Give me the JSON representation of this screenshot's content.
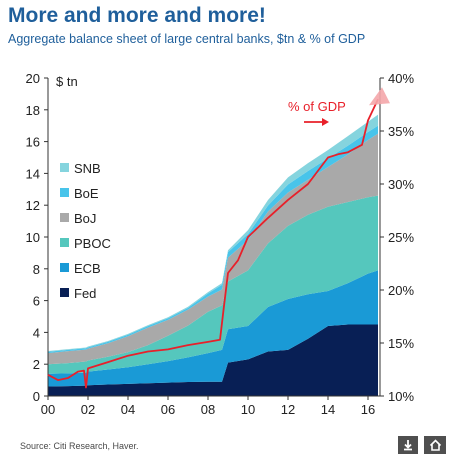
{
  "title": "More and more and more!",
  "subtitle": "Aggregate balance sheet of large central banks, $tn & % of GDP",
  "source": "Source: Citi Research, Haver.",
  "controls": {
    "download_icon": "download-icon",
    "share_icon": "home-icon"
  },
  "chart_data": {
    "type": "area",
    "stacked": true,
    "left_axis_unit": "$ tn",
    "ylim": [
      0,
      20
    ],
    "yticks": [
      0,
      2,
      4,
      6,
      8,
      10,
      12,
      14,
      16,
      18,
      20
    ],
    "y2lim": [
      10,
      40
    ],
    "y2ticks": [
      "10%",
      "15%",
      "20%",
      "25%",
      "30%",
      "35%",
      "40%"
    ],
    "xlim": [
      2000,
      2016.6
    ],
    "xticks": [
      2000,
      2002,
      2004,
      2006,
      2008,
      2010,
      2012,
      2014,
      2016
    ],
    "xtick_labels": [
      "00",
      "02",
      "04",
      "06",
      "08",
      "10",
      "12",
      "14",
      "16"
    ],
    "legend": {
      "placement": "left",
      "entries": [
        {
          "name": "SNB",
          "color": "#85d4de"
        },
        {
          "name": "BoE",
          "color": "#48c4ea"
        },
        {
          "name": "BoJ",
          "color": "#a9a9a9"
        },
        {
          "name": "PBOC",
          "color": "#55c7bd"
        },
        {
          "name": "ECB",
          "color": "#1a9ad6"
        },
        {
          "name": "Fed",
          "color": "#081f55"
        }
      ]
    },
    "x": [
      2000,
      2001,
      2001.9,
      2002,
      2003,
      2004,
      2005,
      2006,
      2007,
      2008,
      2008.7,
      2009,
      2010,
      2011,
      2012,
      2013,
      2014,
      2015,
      2016,
      2016.5
    ],
    "series": [
      {
        "name": "Fed",
        "values": [
          0.6,
          0.62,
          0.65,
          0.68,
          0.72,
          0.76,
          0.8,
          0.84,
          0.88,
          0.9,
          0.9,
          2.1,
          2.3,
          2.8,
          2.9,
          3.6,
          4.4,
          4.5,
          4.5,
          4.5
        ]
      },
      {
        "name": "ECB",
        "values": [
          0.8,
          0.8,
          0.82,
          0.85,
          0.95,
          1.05,
          1.2,
          1.35,
          1.55,
          1.8,
          2.0,
          2.1,
          2.1,
          2.8,
          3.2,
          2.8,
          2.2,
          2.6,
          3.2,
          3.4
        ]
      },
      {
        "name": "PBOC",
        "values": [
          0.6,
          0.65,
          0.7,
          0.7,
          0.8,
          0.95,
          1.2,
          1.6,
          2.0,
          2.6,
          2.8,
          3.0,
          3.5,
          4.0,
          4.6,
          5.0,
          5.3,
          5.1,
          4.8,
          4.7
        ]
      },
      {
        "name": "BoJ",
        "values": [
          0.7,
          0.75,
          0.75,
          0.75,
          0.85,
          1.0,
          1.1,
          1.0,
          1.0,
          0.95,
          1.0,
          1.5,
          1.9,
          2.0,
          2.1,
          2.2,
          2.5,
          3.0,
          3.6,
          3.9
        ]
      },
      {
        "name": "BoE",
        "values": [
          0.08,
          0.08,
          0.08,
          0.08,
          0.09,
          0.09,
          0.1,
          0.1,
          0.11,
          0.2,
          0.3,
          0.35,
          0.38,
          0.38,
          0.5,
          0.55,
          0.55,
          0.55,
          0.5,
          0.5
        ]
      },
      {
        "name": "SNB",
        "values": [
          0.05,
          0.05,
          0.05,
          0.05,
          0.05,
          0.06,
          0.06,
          0.06,
          0.07,
          0.08,
          0.1,
          0.12,
          0.25,
          0.35,
          0.45,
          0.5,
          0.52,
          0.6,
          0.65,
          0.7
        ]
      }
    ],
    "pct_gdp_series": {
      "name": "% of GDP",
      "color": "#e8202a",
      "x": [
        2000,
        2000.5,
        2001,
        2001.5,
        2001.8,
        2001.9,
        2002,
        2003,
        2004,
        2005,
        2006,
        2007,
        2008,
        2008.6,
        2008.8,
        2009,
        2009.5,
        2010,
        2011,
        2012,
        2013,
        2014,
        2014.5,
        2015,
        2015.7,
        2016,
        2016.5
      ],
      "values": [
        12.0,
        11.5,
        11.7,
        12.3,
        12.4,
        10.8,
        12.6,
        13.2,
        13.8,
        14.2,
        14.4,
        14.8,
        15.1,
        15.3,
        18.5,
        21.6,
        22.8,
        25.0,
        26.8,
        28.5,
        30.0,
        32.5,
        32.8,
        33.0,
        33.7,
        36.0,
        38.0
      ]
    },
    "annotation": "% of GDP"
  }
}
